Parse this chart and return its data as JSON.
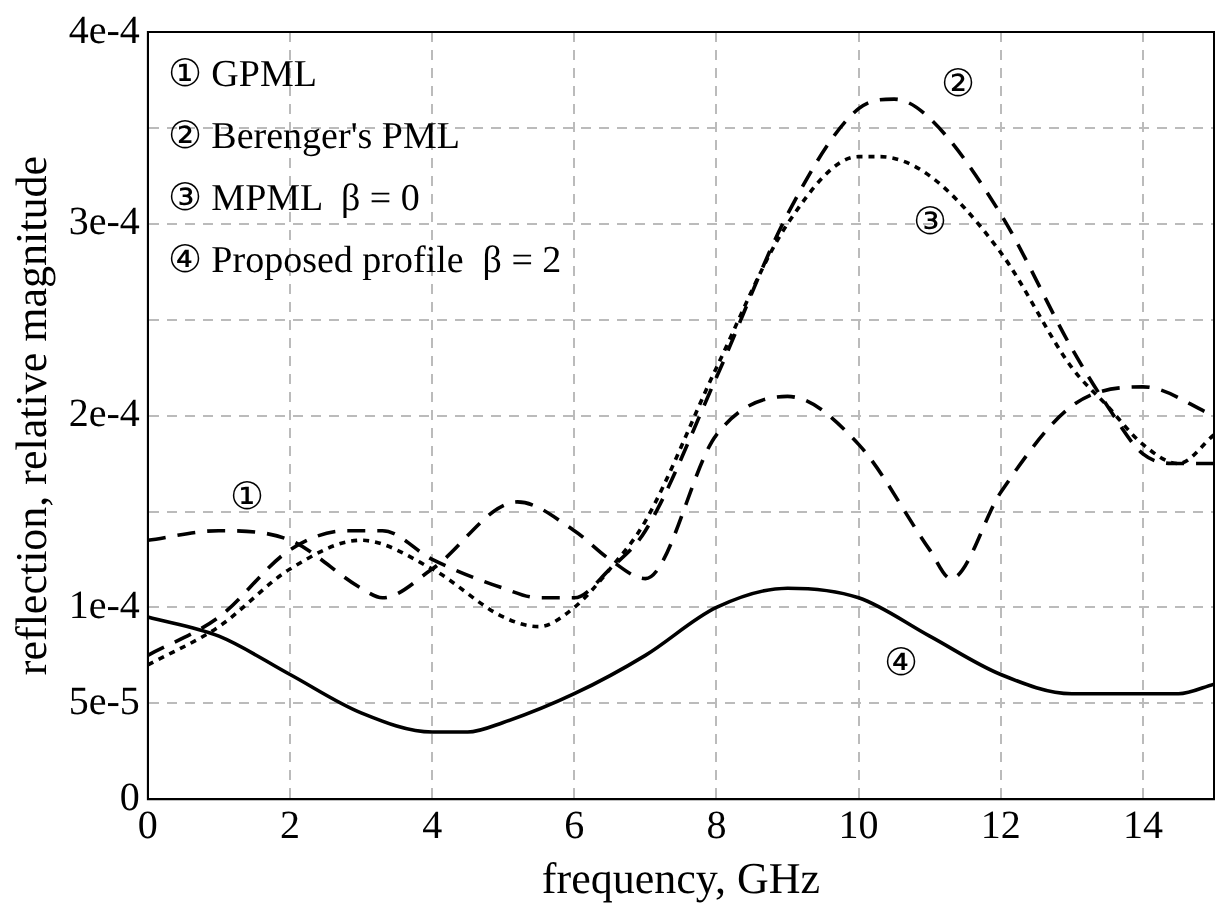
{
  "chart_data": {
    "type": "line",
    "xlabel": "frequency, GHz",
    "ylabel": "reflection, relative magnitude",
    "xlim": [
      0,
      15
    ],
    "xticks": [
      0,
      2,
      4,
      6,
      8,
      10,
      12,
      14
    ],
    "ylim": [
      0,
      0.0004
    ],
    "yticks": [
      0,
      {
        "value": 5e-05,
        "label": "5e-5"
      },
      {
        "value": 0.0001,
        "label": "1e-4"
      },
      {
        "value": 0.00015,
        "label": null
      },
      {
        "value": 0.0002,
        "label": "2e-4"
      },
      {
        "value": 0.00025,
        "label": null
      },
      {
        "value": 0.0003,
        "label": "3e-4"
      },
      {
        "value": 0.00035,
        "label": null
      },
      {
        "value": 0.0004,
        "label": "4e-4"
      }
    ],
    "grid": true,
    "legend": false,
    "marker": "none",
    "series": [
      {
        "color": "#000000",
        "line_style": "dashed",
        "x": [
          0,
          1,
          2,
          3,
          3.3,
          4,
          5.2,
          6,
          6.5,
          7,
          8,
          9,
          10,
          11,
          11.3,
          12,
          13,
          14,
          15
        ],
        "values": [
          0.000135,
          0.00014,
          0.000135,
          0.00011,
          0.000105,
          0.00012,
          0.000155,
          0.00014,
          0.000125,
          0.000115,
          0.00019,
          0.00021,
          0.000185,
          0.00013,
          0.000115,
          0.00016,
          0.000205,
          0.000215,
          0.0002
        ]
      },
      {
        "color": "#000000",
        "line_style": "dashed",
        "x": [
          0,
          1,
          2,
          2.8,
          3.3,
          4,
          5,
          5.5,
          6,
          6.5,
          7,
          8,
          9,
          10,
          10.5,
          11,
          12,
          13,
          13.5,
          14,
          14.5,
          15
        ],
        "values": [
          7.5e-05,
          9.5e-05,
          0.00013,
          0.00014,
          0.00014,
          0.000125,
          0.00011,
          0.000105,
          0.000105,
          0.00012,
          0.00014,
          0.00022,
          0.000305,
          0.00036,
          0.000365,
          0.000355,
          0.000305,
          0.000235,
          0.000205,
          0.00018,
          0.000175,
          0.000175
        ]
      },
      {
        "color": "#000000",
        "line_style": "dotted",
        "x": [
          0,
          1,
          2,
          3,
          4,
          5,
          5.5,
          6,
          6.5,
          7,
          8,
          9,
          10,
          10.3,
          11,
          12,
          13,
          13.5,
          14,
          14.5,
          15
        ],
        "values": [
          7e-05,
          9e-05,
          0.00012,
          0.000135,
          0.00012,
          9.5e-05,
          9e-05,
          0.0001,
          0.00012,
          0.000145,
          0.000225,
          0.0003,
          0.000335,
          0.000335,
          0.000325,
          0.000285,
          0.000225,
          0.000205,
          0.000185,
          0.000175,
          0.00019
        ]
      },
      {
        "color": "#000000",
        "line_style": "solid",
        "x": [
          0,
          1,
          2,
          3,
          4,
          4.5,
          5,
          6,
          7,
          8,
          9,
          10,
          11,
          12,
          13,
          14,
          14.5,
          15
        ],
        "values": [
          9.5e-05,
          8.5e-05,
          6.5e-05,
          4.5e-05,
          3.5e-05,
          3.5e-05,
          4e-05,
          5.5e-05,
          7.5e-05,
          0.0001,
          0.00011,
          0.000105,
          8.5e-05,
          6.5e-05,
          5.5e-05,
          5.5e-05,
          5.5e-05,
          6e-05
        ]
      }
    ],
    "annotations": [
      "① GPML",
      "② Berenger's PML",
      "③ MPML  β = 0",
      "④ Proposed profile  β = 2",
      {
        "text": "①",
        "x": 1,
        "y": 0.00014
      },
      {
        "text": "②",
        "x": 11,
        "y": 0.000355
      },
      {
        "text": "③",
        "x": 11,
        "y": 0.000325
      },
      {
        "text": "④",
        "x": 10.6,
        "y": 9.5e-05
      }
    ]
  }
}
